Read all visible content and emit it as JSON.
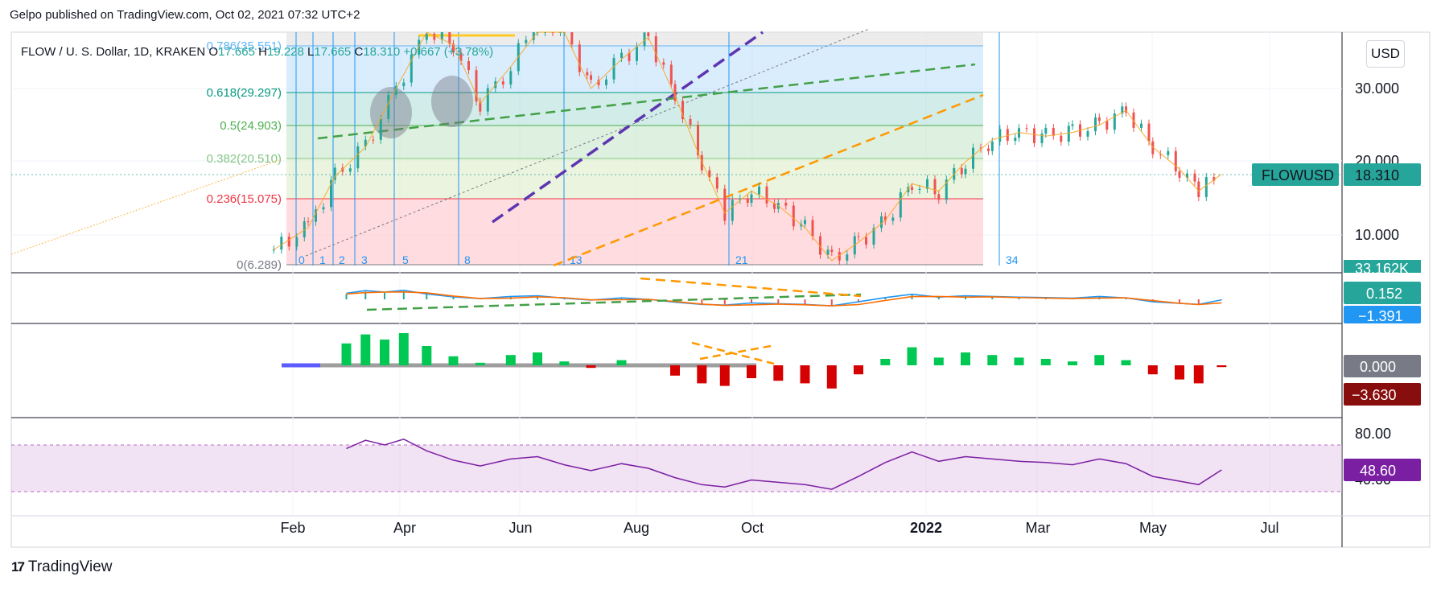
{
  "header": {
    "text": "Gelpo published on TradingView.com, Oct 02, 2021 07:32 UTC+2"
  },
  "legend": {
    "symbol": "FLOW / U. S. Dollar, 1D, KRAKEN",
    "o_label": "O",
    "o": "17.665",
    "h_label": "H",
    "h": "19.228",
    "l_label": "L",
    "l": "17.665",
    "c_label": "C",
    "c": "18.310",
    "change": "+0.667 (+3.78%)"
  },
  "currency_button": "USD",
  "footer": {
    "brand": "TradingView",
    "mark": "17"
  },
  "colors": {
    "up": "#26a69a",
    "down": "#ef5350",
    "fib_0": "#787b86",
    "fib_236": "#f23645",
    "fib_382": "#81c784",
    "fib_5": "#4caf50",
    "fib_618": "#089981",
    "fib_786": "#64b5f6",
    "rsi": "#7b1fa2",
    "macd": "#2196f3",
    "signal": "#ff6d00"
  },
  "chart_data": [
    {
      "type": "candlestick",
      "pane": "price",
      "symbol": "FLOWUSD",
      "last_price": "18.310",
      "volume_label": "33.162K",
      "y_ticks": [
        "30.000",
        "20.000",
        "10.000"
      ],
      "x_ticks": [
        "Feb",
        "Apr",
        "Jun",
        "Aug",
        "Oct",
        "2022",
        "Mar",
        "May",
        "Jul"
      ],
      "close_path": [
        {
          "date": "2021-01-27",
          "close": 8
        },
        {
          "date": "2021-02-05",
          "close": 11
        },
        {
          "date": "2021-02-12",
          "close": 18
        },
        {
          "date": "2021-02-20",
          "close": 22
        },
        {
          "date": "2021-02-28",
          "close": 30
        },
        {
          "date": "2021-03-08",
          "close": 38
        },
        {
          "date": "2021-03-15",
          "close": 36
        },
        {
          "date": "2021-03-22",
          "close": 28
        },
        {
          "date": "2021-03-30",
          "close": 33
        },
        {
          "date": "2021-04-06",
          "close": 40
        },
        {
          "date": "2021-04-13",
          "close": 38
        },
        {
          "date": "2021-04-20",
          "close": 30
        },
        {
          "date": "2021-04-28",
          "close": 34
        },
        {
          "date": "2021-05-05",
          "close": 37
        },
        {
          "date": "2021-05-12",
          "close": 29
        },
        {
          "date": "2021-05-19",
          "close": 20
        },
        {
          "date": "2021-05-25",
          "close": 13
        },
        {
          "date": "2021-06-01",
          "close": 16
        },
        {
          "date": "2021-06-08",
          "close": 14
        },
        {
          "date": "2021-06-15",
          "close": 11
        },
        {
          "date": "2021-06-22",
          "close": 6.5
        },
        {
          "date": "2021-06-29",
          "close": 9
        },
        {
          "date": "2021-07-06",
          "close": 12
        },
        {
          "date": "2021-07-13",
          "close": 17
        },
        {
          "date": "2021-07-20",
          "close": 16
        },
        {
          "date": "2021-07-27",
          "close": 20
        },
        {
          "date": "2021-08-03",
          "close": 23
        },
        {
          "date": "2021-08-10",
          "close": 24
        },
        {
          "date": "2021-08-17",
          "close": 23.5
        },
        {
          "date": "2021-08-24",
          "close": 24
        },
        {
          "date": "2021-08-31",
          "close": 25
        },
        {
          "date": "2021-09-07",
          "close": 27
        },
        {
          "date": "2021-09-14",
          "close": 22
        },
        {
          "date": "2021-09-21",
          "close": 19
        },
        {
          "date": "2021-09-26",
          "close": 16
        },
        {
          "date": "2021-10-02",
          "close": 18.3
        }
      ],
      "fib_levels": [
        {
          "ratio": "0",
          "value": "6.289",
          "label": "0(6.289)"
        },
        {
          "ratio": "0.236",
          "value": "15.075",
          "label": "0.236(15.075)"
        },
        {
          "ratio": "0.382",
          "value": "20.510",
          "label": "0.382(20.510)"
        },
        {
          "ratio": "0.5",
          "value": "24.903",
          "label": "0.5(24.903)"
        },
        {
          "ratio": "0.618",
          "value": "29.297",
          "label": "0.618(29.297)"
        },
        {
          "ratio": "0.786",
          "value": "35.551",
          "label": "0.786(35.551)"
        }
      ],
      "fib_time_labels": [
        "0",
        "1",
        "2",
        "3",
        "5",
        "8",
        "13",
        "21",
        "34"
      ]
    },
    {
      "type": "line",
      "pane": "macd",
      "name": "MACD",
      "values_shown": {
        "macd": "0.152",
        "signal": "−1.391"
      }
    },
    {
      "type": "bar",
      "pane": "momentum",
      "values_shown": {
        "zero": "0.000",
        "current": "−3.630"
      }
    },
    {
      "type": "line",
      "pane": "rsi",
      "name": "RSI",
      "y_ticks": [
        "80.00",
        "40.00"
      ],
      "band": [
        30,
        70
      ],
      "current": "48.60",
      "values": [
        {
          "date": "2021-02-15",
          "value": 67
        },
        {
          "date": "2021-02-20",
          "value": 74
        },
        {
          "date": "2021-02-25",
          "value": 70
        },
        {
          "date": "2021-03-02",
          "value": 75
        },
        {
          "date": "2021-03-08",
          "value": 65
        },
        {
          "date": "2021-03-15",
          "value": 57
        },
        {
          "date": "2021-03-22",
          "value": 52
        },
        {
          "date": "2021-03-30",
          "value": 58
        },
        {
          "date": "2021-04-06",
          "value": 60
        },
        {
          "date": "2021-04-13",
          "value": 53
        },
        {
          "date": "2021-04-20",
          "value": 48
        },
        {
          "date": "2021-04-28",
          "value": 54
        },
        {
          "date": "2021-05-05",
          "value": 50
        },
        {
          "date": "2021-05-12",
          "value": 42
        },
        {
          "date": "2021-05-19",
          "value": 36
        },
        {
          "date": "2021-05-25",
          "value": 34
        },
        {
          "date": "2021-06-01",
          "value": 40
        },
        {
          "date": "2021-06-08",
          "value": 38
        },
        {
          "date": "2021-06-15",
          "value": 36
        },
        {
          "date": "2021-06-22",
          "value": 32
        },
        {
          "date": "2021-06-29",
          "value": 43
        },
        {
          "date": "2021-07-06",
          "value": 55
        },
        {
          "date": "2021-07-13",
          "value": 64
        },
        {
          "date": "2021-07-20",
          "value": 56
        },
        {
          "date": "2021-07-27",
          "value": 60
        },
        {
          "date": "2021-08-03",
          "value": 58
        },
        {
          "date": "2021-08-10",
          "value": 56
        },
        {
          "date": "2021-08-17",
          "value": 55
        },
        {
          "date": "2021-08-24",
          "value": 53
        },
        {
          "date": "2021-08-31",
          "value": 58
        },
        {
          "date": "2021-09-07",
          "value": 54
        },
        {
          "date": "2021-09-14",
          "value": 43
        },
        {
          "date": "2021-09-21",
          "value": 39
        },
        {
          "date": "2021-09-26",
          "value": 36
        },
        {
          "date": "2021-10-02",
          "value": 48.6
        }
      ]
    }
  ]
}
